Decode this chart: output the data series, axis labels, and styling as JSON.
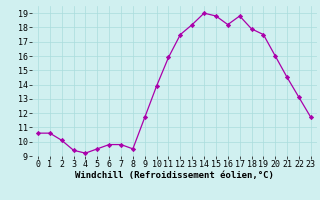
{
  "x": [
    0,
    1,
    2,
    3,
    4,
    5,
    6,
    7,
    8,
    9,
    10,
    11,
    12,
    13,
    14,
    15,
    16,
    17,
    18,
    19,
    20,
    21,
    22,
    23
  ],
  "y": [
    10.6,
    10.6,
    10.1,
    9.4,
    9.2,
    9.5,
    9.8,
    9.8,
    9.5,
    11.7,
    13.9,
    15.9,
    17.5,
    18.2,
    19.0,
    18.8,
    18.2,
    18.8,
    17.9,
    17.5,
    16.0,
    14.5,
    13.1,
    11.7
  ],
  "line_color": "#aa00aa",
  "marker": "D",
  "marker_size": 2.2,
  "xlabel": "Windchill (Refroidissement éolien,°C)",
  "xlabel_fontsize": 6.5,
  "ylabel_ticks": [
    9,
    10,
    11,
    12,
    13,
    14,
    15,
    16,
    17,
    18,
    19
  ],
  "xlim": [
    -0.5,
    23.5
  ],
  "ylim": [
    9,
    19.5
  ],
  "bg_color": "#d0f0f0",
  "grid_color": "#aadddd",
  "tick_fontsize": 6.0
}
